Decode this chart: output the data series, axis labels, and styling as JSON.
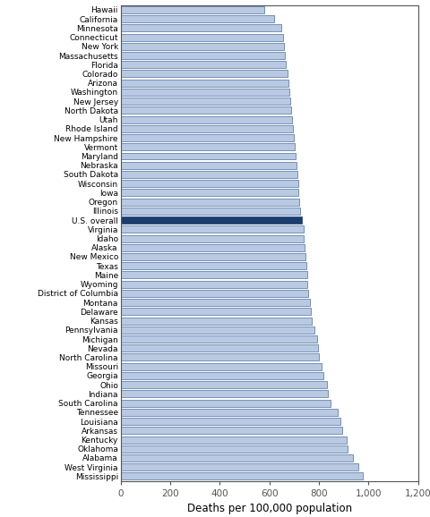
{
  "states": [
    "Mississippi",
    "West Virginia",
    "Alabama",
    "Oklahoma",
    "Kentucky",
    "Arkansas",
    "Louisiana",
    "Tennessee",
    "South Carolina",
    "Indiana",
    "Ohio",
    "Georgia",
    "Missouri",
    "North Carolina",
    "Nevada",
    "Michigan",
    "Pennsylvania",
    "Kansas",
    "Delaware",
    "Montana",
    "District of Columbia",
    "Wyoming",
    "Maine",
    "Texas",
    "New Mexico",
    "Alaska",
    "Idaho",
    "Virginia",
    "U.S. overall",
    "Illinois",
    "Oregon",
    "Iowa",
    "Wisconsin",
    "South Dakota",
    "Nebraska",
    "Maryland",
    "Vermont",
    "New Hampshire",
    "Rhode Island",
    "Utah",
    "North Dakota",
    "New Jersey",
    "Washington",
    "Arizona",
    "Colorado",
    "Florida",
    "Massachusetts",
    "New York",
    "Connecticut",
    "Minnesota",
    "California",
    "Hawaii"
  ],
  "values": [
    976,
    958,
    938,
    916,
    912,
    896,
    888,
    876,
    848,
    838,
    832,
    818,
    812,
    802,
    798,
    792,
    782,
    772,
    768,
    763,
    758,
    755,
    752,
    750,
    747,
    743,
    740,
    737,
    731,
    726,
    722,
    718,
    716,
    712,
    709,
    707,
    703,
    699,
    696,
    692,
    688,
    685,
    682,
    678,
    672,
    668,
    664,
    661,
    657,
    650,
    618,
    578
  ],
  "us_overall_index": 28,
  "bar_color": "#b8c9e1",
  "us_bar_color": "#1a3d6e",
  "edge_color": "#4a6fa5",
  "us_edge_color": "#1a3d6e",
  "xlabel": "Deaths per 100,000 population",
  "xlim": [
    0,
    1200
  ],
  "xticks": [
    0,
    200,
    400,
    600,
    800,
    1000,
    1200
  ],
  "xticklabels": [
    "0",
    "200",
    "400",
    "600",
    "800",
    "1,000",
    "1,200"
  ],
  "label_fontsize": 6.5,
  "tick_fontsize": 7.5,
  "xlabel_fontsize": 8.5,
  "background_color": "#ffffff",
  "spine_color": "#555555",
  "bar_height": 0.78
}
